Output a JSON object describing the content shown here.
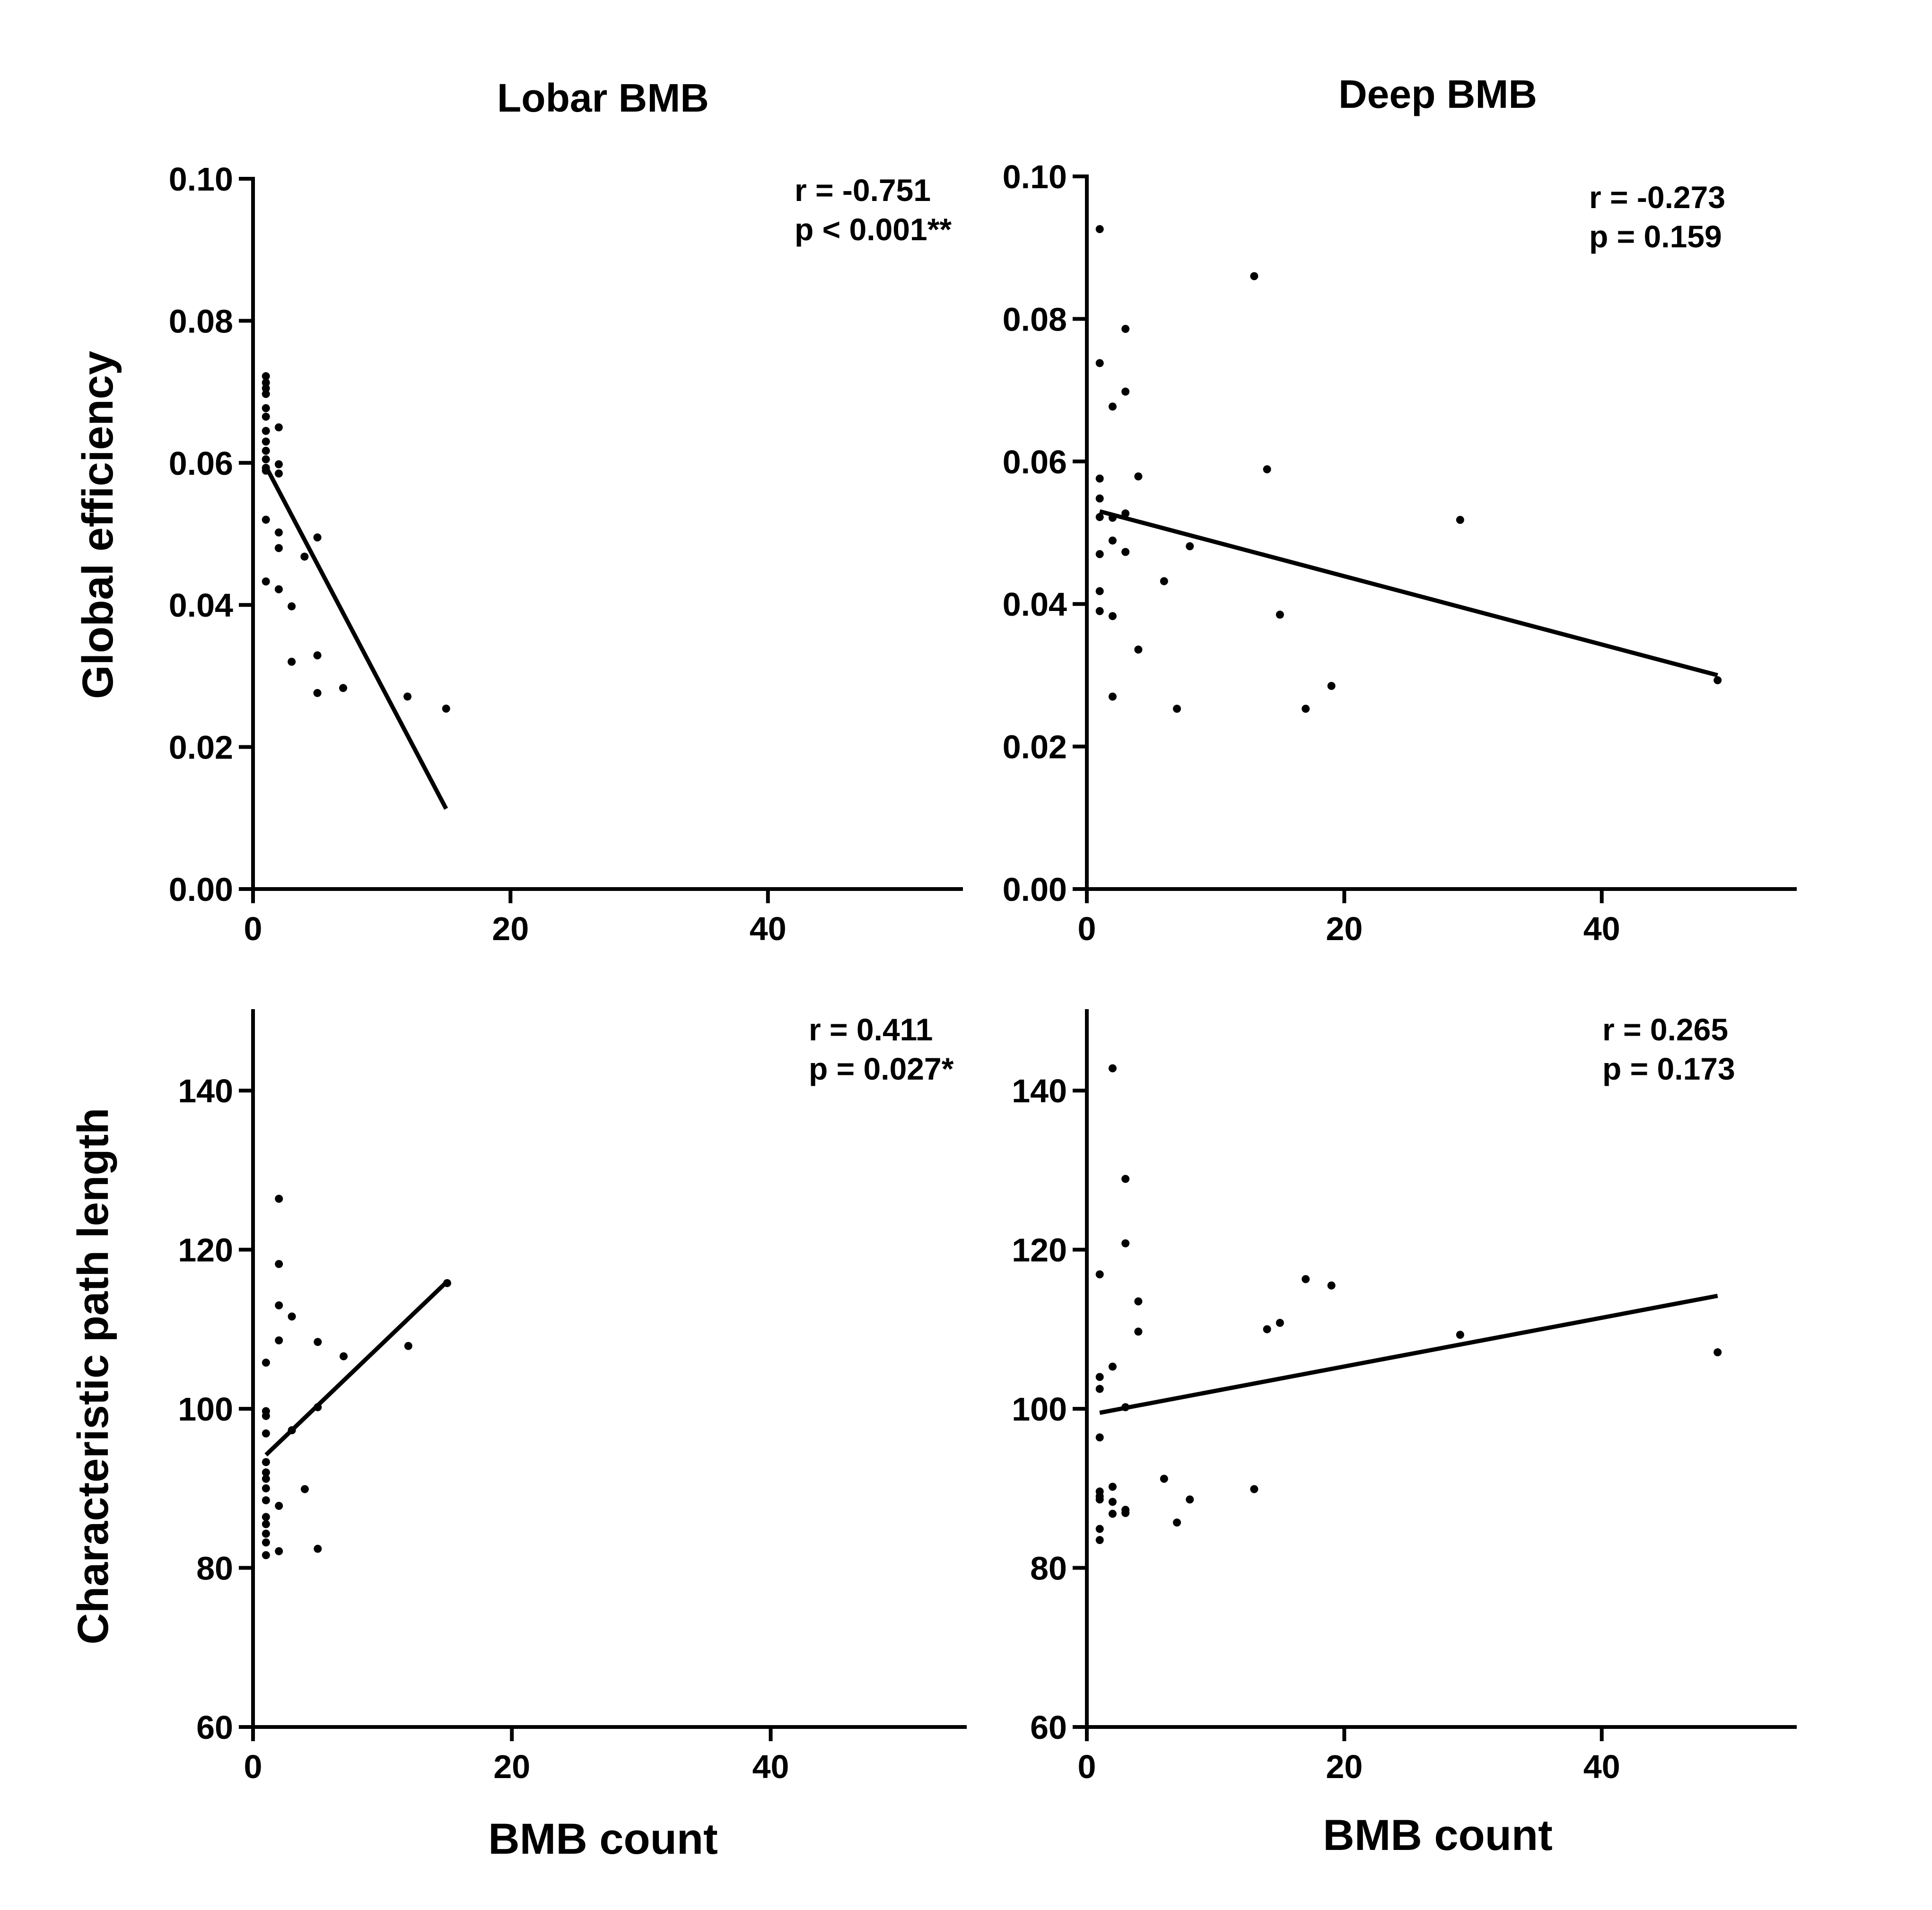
{
  "figure": {
    "column_titles": [
      "Lobar BMB",
      "Deep BMB"
    ],
    "ylabel_top": "Global efficiency",
    "ylabel_bottom": "Characteristic path length",
    "xlabel": "BMB count"
  },
  "chart_data": [
    {
      "type": "scatter",
      "id": "lobar-global-efficiency",
      "title": "Lobar BMB",
      "xlabel": "",
      "ylabel": "Global efficiency",
      "xlim": [
        0,
        55
      ],
      "ylim": [
        0.0,
        0.1
      ],
      "xticks": [
        0,
        20,
        40
      ],
      "xtick_labels": [
        "0",
        "20",
        "40"
      ],
      "yticks": [
        0.0,
        0.02,
        0.04,
        0.06,
        0.08,
        0.1
      ],
      "ytick_labels": [
        "0.00",
        "0.02",
        "0.04",
        "0.06",
        "0.08",
        "0.10"
      ],
      "x": [
        1,
        1,
        1,
        1,
        1,
        1,
        1,
        1,
        1,
        1,
        1,
        1,
        1,
        1,
        2,
        2,
        2,
        2,
        2,
        2,
        3,
        3,
        4,
        5,
        5,
        5,
        7,
        12,
        15
      ],
      "y": [
        0.0722,
        0.0713,
        0.0705,
        0.0697,
        0.0677,
        0.0665,
        0.0645,
        0.063,
        0.0617,
        0.0605,
        0.0593,
        0.052,
        0.0433,
        0.0589,
        0.065,
        0.0598,
        0.0585,
        0.0502,
        0.048,
        0.0422,
        0.0398,
        0.032,
        0.0468,
        0.0495,
        0.0329,
        0.0276,
        0.0283,
        0.0271,
        0.0254
      ],
      "fit_line": {
        "x": [
          1,
          15
        ],
        "y": [
          0.0595,
          0.0113
        ]
      },
      "stats": [
        "r = -0.751",
        "p < 0.001**"
      ]
    },
    {
      "type": "scatter",
      "id": "deep-global-efficiency",
      "title": "Deep BMB",
      "xlabel": "",
      "ylabel": "",
      "xlim": [
        0,
        55
      ],
      "ylim": [
        0.0,
        0.1
      ],
      "xticks": [
        0,
        20,
        40
      ],
      "xtick_labels": [
        "0",
        "20",
        "40"
      ],
      "yticks": [
        0.0,
        0.02,
        0.04,
        0.06,
        0.08,
        0.1
      ],
      "ytick_labels": [
        "0.00",
        "0.02",
        "0.04",
        "0.06",
        "0.08",
        "0.10"
      ],
      "x": [
        1,
        1,
        1,
        1,
        1,
        1,
        1,
        1,
        2,
        2,
        2,
        2,
        2,
        3,
        3,
        3,
        3,
        4,
        4,
        6,
        7,
        8,
        13,
        14,
        15,
        17,
        19,
        29,
        49
      ],
      "y": [
        0.0926,
        0.0738,
        0.0576,
        0.0548,
        0.0522,
        0.047,
        0.0418,
        0.039,
        0.0677,
        0.0521,
        0.0489,
        0.0383,
        0.027,
        0.0786,
        0.0698,
        0.0527,
        0.0473,
        0.0579,
        0.0336,
        0.0432,
        0.0253,
        0.0481,
        0.086,
        0.0589,
        0.0385,
        0.0253,
        0.0285,
        0.0518,
        0.0293
      ],
      "fit_line": {
        "x": [
          1,
          49
        ],
        "y": [
          0.053,
          0.03
        ]
      },
      "stats": [
        "r = -0.273",
        "p = 0.159"
      ]
    },
    {
      "type": "scatter",
      "id": "lobar-path-length",
      "title": "",
      "xlabel": "BMB count",
      "ylabel": "Characteristic path length",
      "xlim": [
        0,
        55
      ],
      "ylim": [
        60,
        150
      ],
      "xticks": [
        0,
        20,
        40
      ],
      "xtick_labels": [
        "0",
        "20",
        "40"
      ],
      "yticks": [
        60,
        80,
        100,
        120,
        140
      ],
      "ytick_labels": [
        "60",
        "80",
        "100",
        "120",
        "140"
      ],
      "x": [
        1,
        1,
        1,
        1,
        1,
        1,
        1,
        1,
        1,
        1,
        1,
        1,
        1,
        1,
        2,
        2,
        2,
        2,
        2,
        2,
        3,
        3,
        4,
        5,
        5,
        5,
        7,
        12,
        15
      ],
      "y": [
        105.8,
        99.7,
        99.1,
        96.9,
        93.3,
        92.0,
        91.2,
        90.0,
        86.4,
        85.5,
        84.3,
        83.2,
        81.6,
        88.5,
        126.4,
        118.2,
        113.0,
        108.6,
        87.8,
        82.1,
        111.6,
        97.3,
        89.9,
        108.4,
        100.2,
        82.4,
        106.6,
        107.9,
        115.8
      ],
      "fit_line": {
        "x": [
          1,
          15
        ],
        "y": [
          94.2,
          116.0
        ]
      },
      "stats": [
        "r = 0.411",
        "p = 0.027*"
      ]
    },
    {
      "type": "scatter",
      "id": "deep-path-length",
      "title": "",
      "xlabel": "BMB count",
      "ylabel": "",
      "xlim": [
        0,
        55
      ],
      "ylim": [
        60,
        150
      ],
      "xticks": [
        0,
        20,
        40
      ],
      "xtick_labels": [
        "0",
        "20",
        "40"
      ],
      "yticks": [
        60,
        80,
        100,
        120,
        140
      ],
      "ytick_labels": [
        "60",
        "80",
        "100",
        "120",
        "140"
      ],
      "x": [
        1,
        1,
        1,
        1,
        1,
        1,
        1,
        1,
        1,
        2,
        2,
        2,
        2,
        2,
        3,
        3,
        3,
        3,
        3,
        4,
        4,
        6,
        7,
        8,
        13,
        14,
        15,
        17,
        19,
        29,
        49
      ],
      "y": [
        116.9,
        104.0,
        102.5,
        96.4,
        89.6,
        89.0,
        88.6,
        84.9,
        83.5,
        142.8,
        105.3,
        90.2,
        88.3,
        86.8,
        128.9,
        120.8,
        100.2,
        87.3,
        86.9,
        113.5,
        109.7,
        91.2,
        85.7,
        88.6,
        89.9,
        110.0,
        110.8,
        116.3,
        115.5,
        109.3,
        107.1
      ],
      "fit_line": {
        "x": [
          1,
          49
        ],
        "y": [
          99.5,
          114.2
        ]
      },
      "stats": [
        "r = 0.265",
        "p = 0.173"
      ]
    }
  ]
}
